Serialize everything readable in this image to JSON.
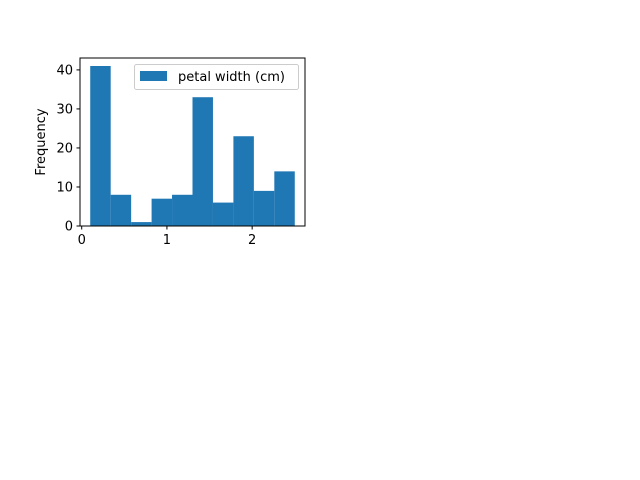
{
  "chart_data": {
    "type": "bar",
    "subtype": "histogram",
    "bins": [
      {
        "start": 0.1,
        "end": 0.34,
        "count": 41
      },
      {
        "start": 0.34,
        "end": 0.58,
        "count": 8
      },
      {
        "start": 0.58,
        "end": 0.82,
        "count": 1
      },
      {
        "start": 0.82,
        "end": 1.06,
        "count": 7
      },
      {
        "start": 1.06,
        "end": 1.3,
        "count": 8
      },
      {
        "start": 1.3,
        "end": 1.54,
        "count": 33
      },
      {
        "start": 1.54,
        "end": 1.78,
        "count": 6
      },
      {
        "start": 1.78,
        "end": 2.02,
        "count": 23
      },
      {
        "start": 2.02,
        "end": 2.26,
        "count": 9
      },
      {
        "start": 2.26,
        "end": 2.5,
        "count": 14
      }
    ],
    "series": [
      {
        "name": "petal width (cm)",
        "color": "#1f77b4"
      }
    ],
    "xlabel": "",
    "ylabel": "Frequency",
    "xlim": [
      -0.02,
      2.62
    ],
    "ylim": [
      0,
      43.05
    ],
    "xticks": [
      0,
      1,
      2
    ],
    "yticks": [
      0,
      10,
      20,
      30,
      40
    ],
    "grid": false,
    "legend_position": "top-right"
  }
}
